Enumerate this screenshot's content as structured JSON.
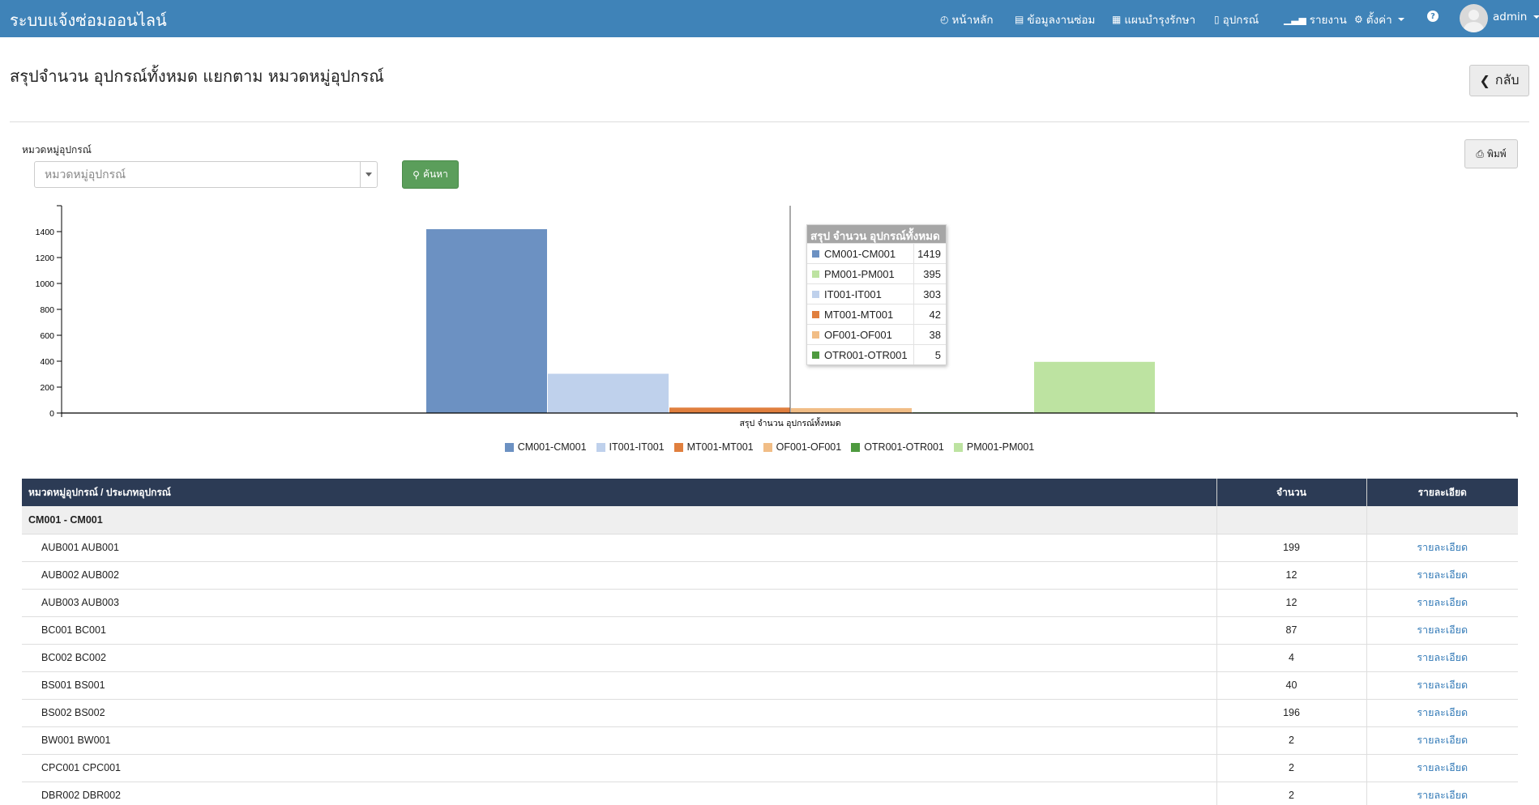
{
  "app": {
    "brand": "ระบบแจ้งซ่อมออนไลน์"
  },
  "nav": {
    "home": {
      "icon": "clock-icon",
      "label": "หน้าหลัก"
    },
    "repair_data": {
      "icon": "list-icon",
      "label": "ข้อมูลงานซ่อม"
    },
    "maintenance_plan": {
      "icon": "calendar-icon",
      "label": "แผนบำรุงรักษา"
    },
    "equipment": {
      "icon": "mobile-icon",
      "label": "อุปกรณ์"
    },
    "reports": {
      "icon": "bar-chart-icon",
      "label": "รายงาน"
    },
    "settings": {
      "icon": "gear-icon",
      "label": "ตั้งค่า"
    },
    "help": {
      "icon": "help-icon",
      "label": "?"
    },
    "user": {
      "icon": "avatar",
      "label": "admin"
    }
  },
  "page": {
    "title": "สรุปจำนวน อุปกรณ์ทั้งหมด แยกตาม หมวดหมู่อุปกรณ์",
    "back_label": "กลับ",
    "print_label": "พิมพ์"
  },
  "filter": {
    "label": "หมวดหมู่อุปกรณ์",
    "placeholder": "หมวดหมู่อุปกรณ์",
    "value": "",
    "search_label": "ค้นหา"
  },
  "chart_data": {
    "type": "bar",
    "categories": [
      "สรุป จำนวน อุปกรณ์ทั้งหมด"
    ],
    "xlabel": "สรุป จำนวน อุปกรณ์ทั้งหมด",
    "ylabel": "",
    "ylim": [
      0,
      1600
    ],
    "yticks": [
      0,
      200,
      400,
      600,
      800,
      1000,
      1200,
      1400
    ],
    "grid": false,
    "legend_position": "bottom",
    "series": [
      {
        "name": "CM001-CM001",
        "values": [
          1419
        ],
        "color": "#6c91c2"
      },
      {
        "name": "IT001-IT001",
        "values": [
          303
        ],
        "color": "#bfd1ec"
      },
      {
        "name": "MT001-MT001",
        "values": [
          42
        ],
        "color": "#e07f3e"
      },
      {
        "name": "OF001-OF001",
        "values": [
          38
        ],
        "color": "#f1bd86"
      },
      {
        "name": "OTR001-OTR001",
        "values": [
          5
        ],
        "color": "#4e9a3f"
      },
      {
        "name": "PM001-PM001",
        "values": [
          395
        ],
        "color": "#bde3a1"
      }
    ],
    "tooltip": {
      "title": "สรุป จำนวน อุปกรณ์ทั้งหมด",
      "rows": [
        {
          "name": "CM001-CM001",
          "value": "1419",
          "color": "#6c91c2"
        },
        {
          "name": "PM001-PM001",
          "value": "395",
          "color": "#bde3a1"
        },
        {
          "name": "IT001-IT001",
          "value": "303",
          "color": "#bfd1ec"
        },
        {
          "name": "MT001-MT001",
          "value": "42",
          "color": "#e07f3e"
        },
        {
          "name": "OF001-OF001",
          "value": "38",
          "color": "#f1bd86"
        },
        {
          "name": "OTR001-OTR001",
          "value": "5",
          "color": "#4e9a3f"
        }
      ]
    }
  },
  "table": {
    "headers": [
      "หมวดหมู่อุปกรณ์ / ประเภทอุปกรณ์",
      "จำนวน",
      "รายละเอียด"
    ],
    "group": "CM001 - CM001",
    "detail_label": "รายละเอียด",
    "rows": [
      {
        "name": "AUB001 AUB001",
        "count": "199"
      },
      {
        "name": "AUB002 AUB002",
        "count": "12"
      },
      {
        "name": "AUB003 AUB003",
        "count": "12"
      },
      {
        "name": "BC001 BC001",
        "count": "87"
      },
      {
        "name": "BC002 BC002",
        "count": "4"
      },
      {
        "name": "BS001 BS001",
        "count": "40"
      },
      {
        "name": "BS002 BS002",
        "count": "196"
      },
      {
        "name": "BW001 BW001",
        "count": "2"
      },
      {
        "name": "CPC001 CPC001",
        "count": "2"
      },
      {
        "name": "DBR002 DBR002",
        "count": "2"
      }
    ]
  },
  "colors": {
    "navbar": "#3f83b8",
    "table_header": "#2c3b55",
    "search_button": "#5b9e5b",
    "link": "#337ab7"
  }
}
